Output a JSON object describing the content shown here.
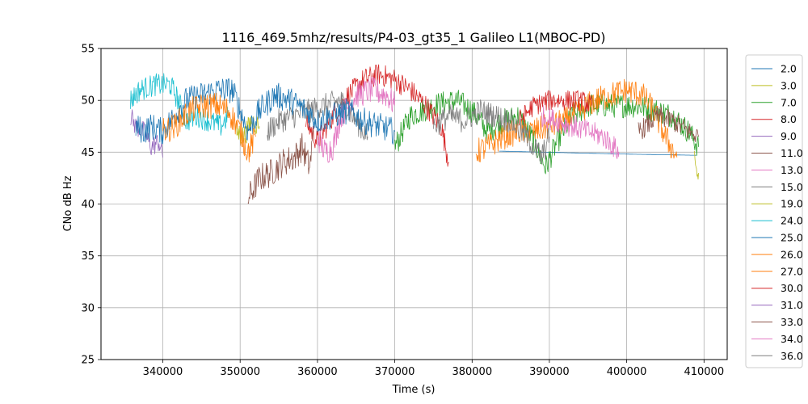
{
  "chart_data": {
    "type": "line",
    "title": "1116_469.5mhz/results/P4-03_gt35_1 Galileo L1(MBOC-PD)",
    "xlabel": "Time (s)",
    "ylabel": "CNo dB Hz",
    "xlim": [
      332000,
      413000
    ],
    "ylim": [
      25,
      55
    ],
    "xticks": [
      340000,
      350000,
      360000,
      370000,
      380000,
      390000,
      400000,
      410000
    ],
    "yticks": [
      25,
      30,
      35,
      40,
      45,
      50,
      55
    ],
    "grid": true,
    "legend_position": "right-outside",
    "series": [
      {
        "name": "2.0",
        "color": "#1f77b4",
        "noise": 0.0,
        "points": [
          [
            383500,
            45.1
          ],
          [
            389000,
            45.0
          ],
          [
            395000,
            44.9
          ],
          [
            401000,
            44.8
          ],
          [
            409000,
            44.7
          ]
        ]
      },
      {
        "name": "3.0",
        "color": "#bcbd22",
        "noise": 0.6,
        "points": [
          [
            408700,
            45.0
          ],
          [
            408900,
            43.5
          ],
          [
            409100,
            42.5
          ],
          [
            409300,
            43.0
          ]
        ]
      },
      {
        "name": "7.0",
        "color": "#2ca02c",
        "noise": 1.2,
        "points": [
          [
            370000,
            45.5
          ],
          [
            372000,
            48.5
          ],
          [
            375000,
            49.5
          ],
          [
            378000,
            50.0
          ],
          [
            380000,
            49.0
          ],
          [
            382000,
            47.0
          ],
          [
            384000,
            48.0
          ],
          [
            386000,
            48.5
          ],
          [
            388000,
            46.0
          ],
          [
            389500,
            43.5
          ],
          [
            391000,
            46.0
          ],
          [
            393000,
            48.5
          ],
          [
            395000,
            49.5
          ],
          [
            398000,
            49.5
          ],
          [
            401000,
            49.5
          ],
          [
            404000,
            49.0
          ],
          [
            406000,
            48.5
          ],
          [
            408000,
            47.0
          ],
          [
            409300,
            45.5
          ]
        ]
      },
      {
        "name": "8.0",
        "color": "#d62728",
        "noise": 1.1,
        "points": [
          [
            358500,
            48.0
          ],
          [
            360000,
            46.0
          ],
          [
            362000,
            48.5
          ],
          [
            364000,
            50.5
          ],
          [
            366000,
            52.0
          ],
          [
            368000,
            52.5
          ],
          [
            370000,
            52.0
          ],
          [
            372000,
            51.0
          ],
          [
            374000,
            49.5
          ],
          [
            376000,
            47.5
          ],
          [
            377000,
            44.0
          ]
        ]
      },
      {
        "name": "9.0",
        "color": "#9467bd",
        "noise": 1.0,
        "points": [
          [
            335800,
            48.5
          ],
          [
            336500,
            47.5
          ],
          [
            337500,
            47.0
          ],
          [
            338500,
            45.5
          ],
          [
            339500,
            46.0
          ],
          [
            340000,
            44.5
          ]
        ]
      },
      {
        "name": "11.0",
        "color": "#8c564b",
        "noise": 1.4,
        "points": [
          [
            351000,
            40.5
          ],
          [
            352500,
            42.5
          ],
          [
            354000,
            43.0
          ],
          [
            355500,
            44.0
          ],
          [
            357000,
            44.5
          ],
          [
            358000,
            45.5
          ],
          [
            359000,
            43.5
          ],
          [
            359500,
            47.0
          ]
        ]
      },
      {
        "name": "13.0",
        "color": "#e377c2",
        "noise": 1.3,
        "points": [
          [
            360000,
            46.5
          ],
          [
            361000,
            45.0
          ],
          [
            362000,
            45.5
          ],
          [
            363000,
            48.5
          ],
          [
            365000,
            50.5
          ],
          [
            367000,
            51.0
          ],
          [
            369000,
            50.5
          ],
          [
            370000,
            49.5
          ]
        ]
      },
      {
        "name": "15.0",
        "color": "#7f7f7f",
        "noise": 1.2,
        "points": [
          [
            353500,
            47.0
          ],
          [
            355000,
            48.0
          ],
          [
            357000,
            48.5
          ],
          [
            359000,
            49.0
          ],
          [
            361000,
            49.5
          ],
          [
            363000,
            50.0
          ],
          [
            365000,
            48.0
          ],
          [
            366500,
            46.5
          ]
        ]
      },
      {
        "name": "19.0",
        "color": "#bcbd22",
        "noise": 1.1,
        "points": [
          [
            349500,
            47.0
          ],
          [
            350500,
            46.5
          ],
          [
            351500,
            48.0
          ],
          [
            352500,
            47.5
          ]
        ]
      },
      {
        "name": "24.0",
        "color": "#17becf",
        "noise": 1.1,
        "points": [
          [
            335800,
            50.0
          ],
          [
            337000,
            51.0
          ],
          [
            339000,
            51.5
          ],
          [
            341000,
            51.5
          ],
          [
            342000,
            50.0
          ],
          [
            343000,
            48.0
          ],
          [
            344500,
            48.5
          ],
          [
            346000,
            48.0
          ],
          [
            347500,
            47.5
          ],
          [
            348500,
            48.5
          ]
        ]
      },
      {
        "name": "25.0",
        "color": "#1f77b4",
        "noise": 1.3,
        "points": [
          [
            336500,
            47.5
          ],
          [
            337500,
            47.0
          ],
          [
            338500,
            47.5
          ],
          [
            340000,
            47.0
          ],
          [
            341500,
            48.5
          ],
          [
            343000,
            50.0
          ],
          [
            345000,
            50.5
          ],
          [
            347000,
            51.0
          ],
          [
            349000,
            51.0
          ],
          [
            350000,
            49.0
          ],
          [
            351000,
            47.0
          ],
          [
            352500,
            49.0
          ],
          [
            354500,
            50.5
          ],
          [
            356500,
            50.0
          ],
          [
            358500,
            49.0
          ],
          [
            360000,
            48.0
          ],
          [
            362000,
            48.5
          ],
          [
            364000,
            49.0
          ],
          [
            366000,
            48.0
          ],
          [
            368000,
            47.5
          ],
          [
            370000,
            47.0
          ]
        ]
      },
      {
        "name": "26.0",
        "color": "#ff7f0e",
        "noise": 1.3,
        "points": [
          [
            340000,
            47.0
          ],
          [
            341500,
            47.5
          ],
          [
            343500,
            49.0
          ],
          [
            345500,
            49.5
          ],
          [
            347000,
            49.5
          ],
          [
            348500,
            49.0
          ],
          [
            350000,
            47.0
          ],
          [
            351000,
            45.0
          ],
          [
            352000,
            46.5
          ]
        ]
      },
      {
        "name": "27.0",
        "color": "#ff7f0e",
        "noise": 1.3,
        "points": [
          [
            380500,
            45.0
          ],
          [
            382000,
            45.5
          ],
          [
            384000,
            46.5
          ],
          [
            386000,
            47.0
          ],
          [
            388000,
            47.0
          ],
          [
            390000,
            47.5
          ],
          [
            392000,
            48.0
          ],
          [
            394000,
            49.0
          ],
          [
            396000,
            50.0
          ],
          [
            398000,
            50.5
          ],
          [
            400000,
            51.0
          ],
          [
            402000,
            50.5
          ],
          [
            403500,
            49.0
          ],
          [
            405000,
            46.5
          ],
          [
            406500,
            44.5
          ]
        ]
      },
      {
        "name": "30.0",
        "color": "#d62728",
        "noise": 1.0,
        "points": [
          [
            386000,
            48.0
          ],
          [
            388000,
            49.5
          ],
          [
            390000,
            50.0
          ],
          [
            392000,
            50.0
          ],
          [
            394000,
            50.0
          ],
          [
            395500,
            49.5
          ]
        ]
      },
      {
        "name": "31.0",
        "color": "#9467bd",
        "noise": 0.0,
        "points": []
      },
      {
        "name": "33.0",
        "color": "#8c564b",
        "noise": 1.0,
        "points": [
          [
            401500,
            47.0
          ],
          [
            402500,
            47.5
          ],
          [
            404000,
            48.5
          ],
          [
            406000,
            48.0
          ],
          [
            408000,
            47.0
          ],
          [
            409300,
            46.5
          ]
        ]
      },
      {
        "name": "34.0",
        "color": "#e377c2",
        "noise": 1.1,
        "points": [
          [
            389000,
            48.5
          ],
          [
            391000,
            48.0
          ],
          [
            393000,
            47.5
          ],
          [
            395000,
            47.0
          ],
          [
            397000,
            46.5
          ],
          [
            399000,
            45.0
          ]
        ]
      },
      {
        "name": "36.0",
        "color": "#7f7f7f",
        "noise": 1.2,
        "points": [
          [
            375000,
            47.5
          ],
          [
            377000,
            48.5
          ],
          [
            379000,
            48.0
          ],
          [
            381000,
            49.0
          ],
          [
            383000,
            48.5
          ],
          [
            385000,
            48.0
          ],
          [
            387000,
            46.5
          ],
          [
            389000,
            44.5
          ],
          [
            390000,
            46.5
          ]
        ]
      }
    ]
  }
}
